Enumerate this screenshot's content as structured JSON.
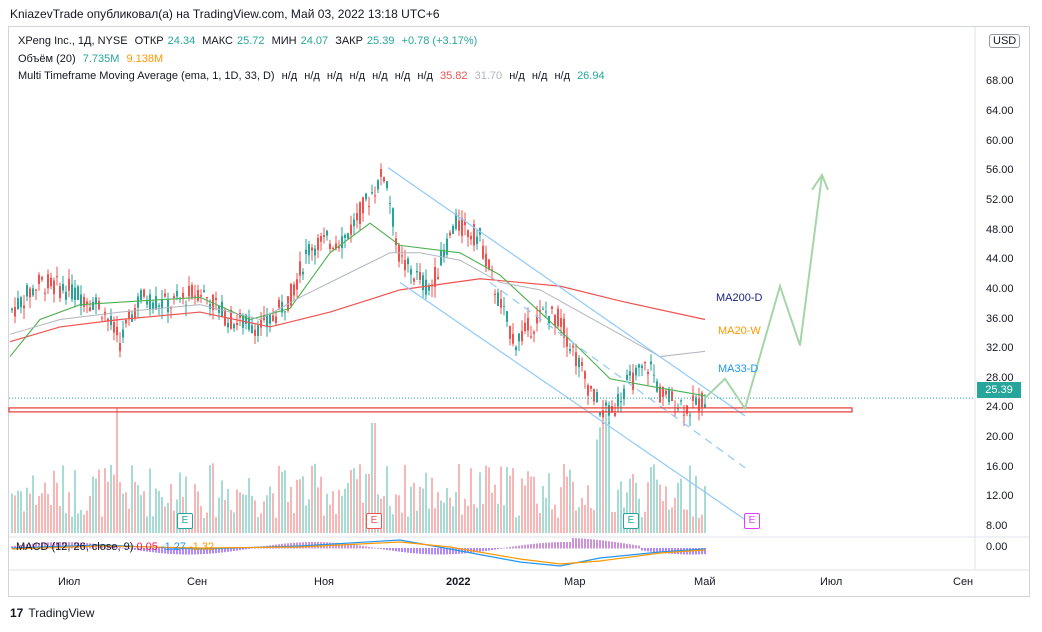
{
  "header": {
    "publish_line": "KniazevTrade опубликовал(а) на TradingView.com, Май 03, 2022 13:18 UTC+6"
  },
  "legend": {
    "symbol": "XPeng Inc., 1Д, NYSE",
    "open_label": "ОТКР",
    "open": "24.34",
    "high_label": "МАКС",
    "high": "25.72",
    "low_label": "МИН",
    "low": "24.07",
    "close_label": "ЗАКР",
    "close": "25.39",
    "change": "+0.78 (+3.17%)",
    "volume_title": "Объём (20)",
    "volume_value": "7.735M",
    "volume_ma": "9.138M",
    "mtf_title": "Multi Timeframe Moving Average (ema, 1, 1D, 33, D)",
    "mtf_na": [
      "н/д",
      "н/д",
      "н/д",
      "н/д",
      "н/д",
      "н/д",
      "н/д"
    ],
    "mtf_v1": "35.82",
    "mtf_v2": "31.70",
    "mtf_na2": [
      "н/д",
      "н/д",
      "н/д"
    ],
    "mtf_v3": "26.94"
  },
  "macd_legend": {
    "title": "MACD (12, 26, close, 9)",
    "v1": "0.05",
    "v2": "-1.27",
    "v3": "-1.32"
  },
  "currency": "USD",
  "last_price": "25.39",
  "macd_axis_label": "0.00",
  "ma_labels": {
    "ma200": "MA200-D",
    "ma20": "MA20-W",
    "ma33": "MA33-D"
  },
  "earnings_marker": "E",
  "footer": {
    "brand": "TradingView"
  },
  "colors": {
    "up": "#26a69a",
    "down": "#ef5350",
    "ma200": "#ef5350",
    "ma33": "#4caf50",
    "projection": "#a5d6a7",
    "channel": "#90caf9",
    "support": "#e53935",
    "mtf": "#b2b5be"
  },
  "chart_data": {
    "type": "candlestick",
    "y_ticks": [
      "8.00",
      "12.00",
      "16.00",
      "20.00",
      "24.00",
      "28.00",
      "32.00",
      "36.00",
      "40.00",
      "44.00",
      "48.00",
      "52.00",
      "56.00",
      "60.00",
      "64.00",
      "68.00"
    ],
    "ylim": [
      7,
      68
    ],
    "x_ticks": [
      "Июл",
      "Сен",
      "Ноя",
      "2022",
      "Мар",
      "Май",
      "Июл",
      "Сен"
    ],
    "support_level": 23.8,
    "last_close": 25.39,
    "price_path_approx": [
      {
        "period": "Июнь 2021",
        "price": 36
      },
      {
        "period": "Июль 2021",
        "price": 42
      },
      {
        "period": "Авг 2021",
        "price": 36
      },
      {
        "period": "Сен 2021",
        "price": 40
      },
      {
        "period": "Окт 2021",
        "price": 36
      },
      {
        "period": "Ноя 2021",
        "price": 48
      },
      {
        "period": "Ноя 2021 пик",
        "price": 56.3
      },
      {
        "period": "Дек 2021",
        "price": 42
      },
      {
        "period": "Янв 2022",
        "price": 48
      },
      {
        "period": "Фев 2022",
        "price": 38
      },
      {
        "period": "Мар 2022",
        "price": 23.5
      },
      {
        "period": "Апр 2022",
        "price": 30
      },
      {
        "period": "Май 2022",
        "price": 25.39
      }
    ],
    "projection_path": [
      25.4,
      28,
      24,
      40.5,
      32.5,
      55.5
    ],
    "moving_averages": [
      "MA200-D",
      "MA20-W",
      "MA33-D"
    ]
  }
}
